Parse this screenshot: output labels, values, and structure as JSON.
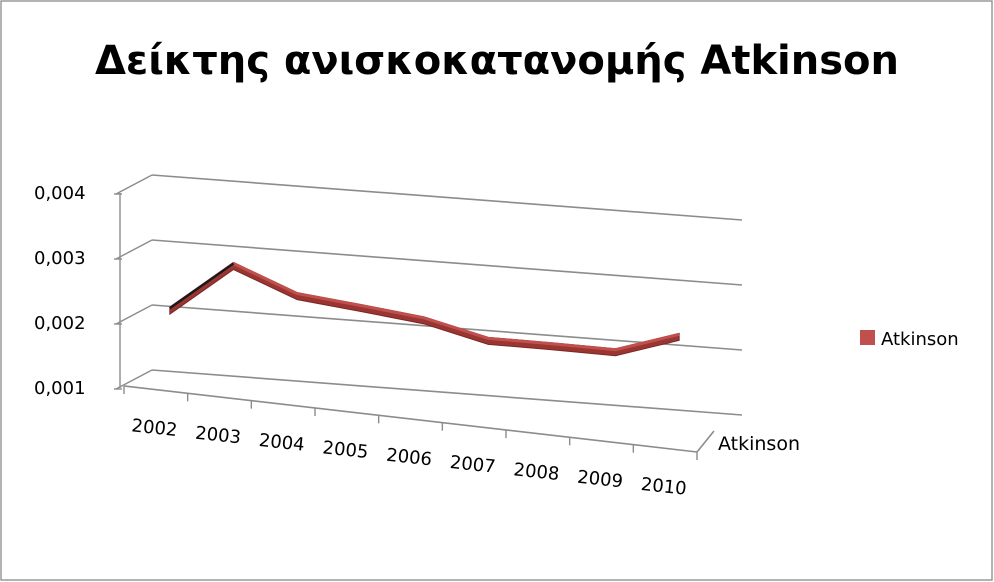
{
  "chart_data": {
    "type": "line",
    "title": "Δείκτης ανισκοκατανομής Atkinson",
    "categories": [
      "2002",
      "2003",
      "2004",
      "2005",
      "2006",
      "2007",
      "2008",
      "2009",
      "2010"
    ],
    "series": [
      {
        "name": "Atkinson",
        "values": [
          0.0021,
          0.0029,
          0.00255,
          0.00248,
          0.0024,
          0.0022,
          0.00223,
          0.00225,
          0.0026
        ],
        "color": "#c0504d"
      }
    ],
    "y_ticks": [
      "0,001",
      "0,002",
      "0,003",
      "0,004"
    ],
    "ylim": [
      0.001,
      0.004
    ],
    "depth_axis_label": "Atkinson",
    "legend": {
      "label": "Atkinson",
      "position": "right"
    },
    "grid": true,
    "style": "3d-line"
  }
}
